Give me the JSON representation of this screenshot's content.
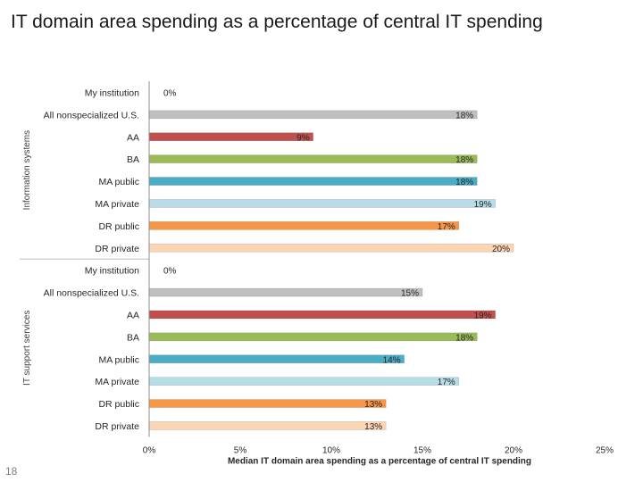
{
  "slide": {
    "title": "IT domain area spending as a percentage of central IT spending",
    "page_number": "18"
  },
  "chart_data": {
    "type": "bar",
    "orientation": "horizontal",
    "grid": false,
    "xlabel": "Median IT domain area spending as a percentage of central IT spending",
    "xlim": [
      0,
      25
    ],
    "xticks": [
      0,
      5,
      10,
      15,
      20,
      25
    ],
    "xtick_labels": [
      "0%",
      "5%",
      "10%",
      "15%",
      "20%",
      "25%"
    ],
    "value_suffix": "%",
    "colors": {
      "My institution": "#ffffff",
      "All nonspecialized U.S.": "#bfbfbf",
      "AA": "#c0504d",
      "BA": "#9bbb59",
      "MA public": "#4bacc6",
      "MA private": "#b7dde8",
      "DR public": "#f79646",
      "DR private": "#fcd5b4"
    },
    "groups": [
      {
        "name": "Information systems",
        "categories": [
          "My institution",
          "All nonspecialized U.S.",
          "AA",
          "BA",
          "MA public",
          "MA private",
          "DR public",
          "DR private"
        ],
        "values": [
          0,
          18,
          9,
          18,
          18,
          19,
          17,
          20
        ]
      },
      {
        "name": "IT support services",
        "categories": [
          "My institution",
          "All nonspecialized U.S.",
          "AA",
          "BA",
          "MA public",
          "MA private",
          "DR public",
          "DR private"
        ],
        "values": [
          0,
          15,
          19,
          18,
          14,
          17,
          13,
          13
        ]
      }
    ]
  }
}
